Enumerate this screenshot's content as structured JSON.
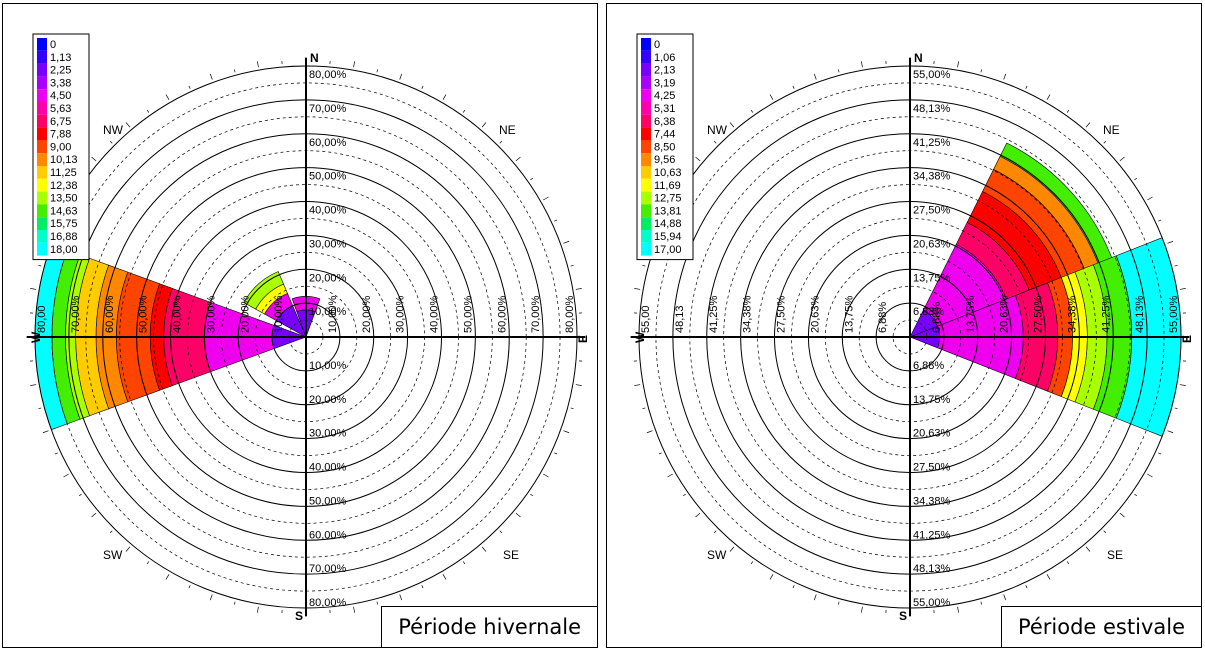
{
  "chart_data": [
    {
      "type": "polar-bar",
      "caption": "Période hivernale",
      "radial_max": 80,
      "radial_labels": [
        "10,00%",
        "20,00%",
        "30,00%",
        "40,00%",
        "50,00%",
        "60,00%",
        "70,00%",
        "80,00%"
      ],
      "radial_labels_short": [
        "10,00%",
        "20,00%",
        "30,00%",
        "40,00%",
        "50,00%",
        "60,00%",
        "70,00%",
        "80,00"
      ],
      "directions": {
        "N": "N",
        "S": "S",
        "E": "E",
        "W": "W",
        "NE": "NE",
        "NW": "NW",
        "SE": "SE",
        "SW": "SW"
      },
      "legend": [
        "0",
        "1,13",
        "2,25",
        "3,38",
        "4,50",
        "5,63",
        "6,75",
        "7,88",
        "9,00",
        "10,13",
        "11,25",
        "12,38",
        "13,50",
        "14,63",
        "15,75",
        "16,88",
        "18,00"
      ],
      "legend_colors": [
        "#0000ff",
        "#3300ff",
        "#7700ff",
        "#aa00ff",
        "#ee00ee",
        "#ff00aa",
        "#ff0066",
        "#ff0000",
        "#ff4400",
        "#ff8800",
        "#ffcc00",
        "#ffff00",
        "#aaff00",
        "#44ee00",
        "#00ee66",
        "#00ffcc",
        "#00ffff"
      ],
      "sectors": [
        {
          "direction_deg": 270,
          "width_deg": 40,
          "bands": [
            {
              "from": 0,
              "to": 10,
              "color": "#7700ff"
            },
            {
              "from": 10,
              "to": 30,
              "color": "#ee00ee"
            },
            {
              "from": 30,
              "to": 42,
              "color": "#ff0066"
            },
            {
              "from": 42,
              "to": 46,
              "color": "#ff0000"
            },
            {
              "from": 46,
              "to": 56,
              "color": "#ff4400"
            },
            {
              "from": 56,
              "to": 62,
              "color": "#ff8800"
            },
            {
              "from": 62,
              "to": 68,
              "color": "#ffcc00"
            },
            {
              "from": 68,
              "to": 71,
              "color": "#aaff00"
            },
            {
              "from": 71,
              "to": 75,
              "color": "#44ee00"
            },
            {
              "from": 75,
              "to": 80,
              "color": "#00ffff"
            }
          ]
        },
        {
          "direction_deg": 318,
          "width_deg": 38,
          "bands": [
            {
              "from": 0,
              "to": 10,
              "color": "#7700ff"
            },
            {
              "from": 10,
              "to": 14,
              "color": "#ee00ee"
            },
            {
              "from": 14,
              "to": 17,
              "color": "#ffff00"
            },
            {
              "from": 17,
              "to": 21,
              "color": "#aaff00"
            }
          ]
        },
        {
          "direction_deg": 0,
          "width_deg": 40,
          "bands": [
            {
              "from": 0,
              "to": 8,
              "color": "#7700ff"
            },
            {
              "from": 8,
              "to": 12,
              "color": "#ee00ee"
            }
          ]
        }
      ]
    },
    {
      "type": "polar-bar",
      "caption": "Période estivale",
      "radial_max": 55,
      "radial_labels": [
        "6,88%",
        "13,75%",
        "20,63%",
        "27,50%",
        "34,38%",
        "41,25%",
        "48,13%",
        "55,00%"
      ],
      "radial_labels_short": [
        "6,88%",
        "13,75%",
        "20,63%",
        "27,50%",
        "34,38%",
        "41,25%",
        "48,13",
        "55,00"
      ],
      "directions": {
        "N": "N",
        "S": "S",
        "E": "E",
        "W": "W",
        "NE": "NE",
        "NW": "NW",
        "SE": "SE",
        "SW": "SW"
      },
      "legend": [
        "0",
        "1,06",
        "2,13",
        "3,19",
        "4,25",
        "5,31",
        "6,38",
        "7,44",
        "8,50",
        "9,56",
        "10,63",
        "11,69",
        "12,75",
        "13,81",
        "14,88",
        "15,94",
        "17,00"
      ],
      "legend_colors": [
        "#0000ff",
        "#3300ff",
        "#7700ff",
        "#aa00ff",
        "#ee00ee",
        "#ff00aa",
        "#ff0066",
        "#ff0000",
        "#ff4400",
        "#ff8800",
        "#ffcc00",
        "#ffff00",
        "#aaff00",
        "#44ee00",
        "#00ee66",
        "#00ffcc",
        "#00ffff"
      ],
      "sectors": [
        {
          "direction_deg": 48,
          "width_deg": 43,
          "bands": [
            {
              "from": 0,
              "to": 6,
              "color": "#7700ff"
            },
            {
              "from": 6,
              "to": 21,
              "color": "#ee00ee"
            },
            {
              "from": 21,
              "to": 26,
              "color": "#ff0066"
            },
            {
              "from": 26,
              "to": 33,
              "color": "#ff0000"
            },
            {
              "from": 33,
              "to": 38,
              "color": "#ff4400"
            },
            {
              "from": 38,
              "to": 41,
              "color": "#ff8800"
            },
            {
              "from": 41,
              "to": 44,
              "color": "#44ee00"
            }
          ]
        },
        {
          "direction_deg": 90,
          "width_deg": 43,
          "bands": [
            {
              "from": 0,
              "to": 6,
              "color": "#7700ff"
            },
            {
              "from": 6,
              "to": 23,
              "color": "#ee00ee"
            },
            {
              "from": 23,
              "to": 30,
              "color": "#ff0066"
            },
            {
              "from": 30,
              "to": 33,
              "color": "#ff4400"
            },
            {
              "from": 33,
              "to": 36,
              "color": "#ffff00"
            },
            {
              "from": 36,
              "to": 40,
              "color": "#aaff00"
            },
            {
              "from": 40,
              "to": 45,
              "color": "#44ee00"
            },
            {
              "from": 45,
              "to": 55,
              "color": "#00ffff"
            }
          ]
        }
      ]
    }
  ]
}
